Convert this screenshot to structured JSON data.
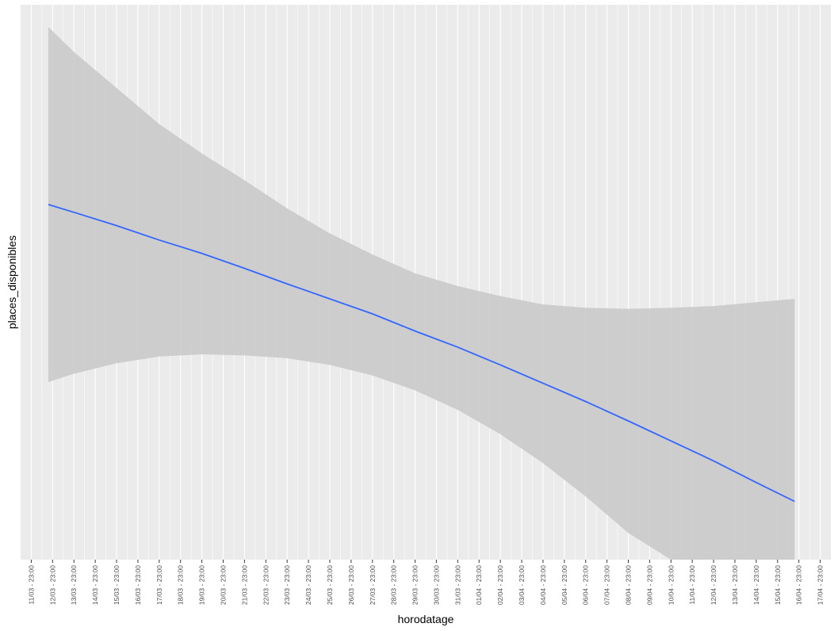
{
  "colors": {
    "panel_background": "#ebebeb",
    "grid_line": "#ffffff",
    "ribbon_fill": "#c8c8c8",
    "line_color": "#3366ff",
    "tick_color": "#333333"
  },
  "chart_data": {
    "type": "line",
    "title": "",
    "xlabel": "horodatage",
    "ylabel": "places_disponibles",
    "grid": true,
    "y_tick_labels_shown": false,
    "x_tick_labels": [
      "11/03 - 23:00",
      "12/03 - 23:00",
      "13/03 - 23:00",
      "14/03 - 23:00",
      "15/03 - 23:00",
      "16/03 - 23:00",
      "17/03 - 23:00",
      "18/03 - 23:00",
      "19/03 - 23:00",
      "20/03 - 23:00",
      "21/03 - 23:00",
      "22/03 - 23:00",
      "23/03 - 23:00",
      "24/03 - 23:00",
      "25/03 - 23:00",
      "26/03 - 23:00",
      "27/03 - 23:00",
      "28/03 - 23:00",
      "29/03 - 23:00",
      "30/03 - 23:00",
      "31/03 - 23:00",
      "01/04 - 23:00",
      "02/04 - 23:00",
      "03/04 - 23:00",
      "04/04 - 23:00",
      "05/04 - 23:00",
      "06/04 - 23:00",
      "07/04 - 23:00",
      "08/04 - 23:00",
      "09/04 - 23:00",
      "10/04 - 23:00",
      "11/04 - 23:00",
      "12/04 - 23:00",
      "13/04 - 23:00",
      "14/04 - 23:00",
      "15/04 - 23:00",
      "16/04 - 23:00",
      "17/04 - 23:00"
    ],
    "xlim_ticks": [
      0,
      37
    ],
    "ylim": [
      0,
      100
    ],
    "series": [
      {
        "x": [
          0.8,
          2,
          4,
          6,
          8,
          10,
          12,
          14,
          16,
          18,
          20,
          22,
          24,
          26,
          28,
          30,
          32,
          34,
          35.8
        ],
        "y": [
          64,
          62.6,
          60.2,
          57.6,
          55.2,
          52.5,
          49.7,
          47.0,
          44.3,
          41.2,
          38.3,
          35.1,
          31.8,
          28.5,
          25.0,
          21.4,
          17.8,
          13.9,
          10.5
        ],
        "ymin": [
          32,
          33.5,
          35.4,
          36.6,
          37.0,
          36.8,
          36.3,
          35.1,
          33.2,
          30.5,
          27.0,
          22.6,
          17.4,
          11.4,
          4.8,
          -2.3,
          -9.5,
          -17.0,
          -24.5
        ],
        "ymax": [
          96,
          91.5,
          85.0,
          78.5,
          73.2,
          68.4,
          63.3,
          58.8,
          55.0,
          51.6,
          49.3,
          47.5,
          46.0,
          45.4,
          45.2,
          45.4,
          45.7,
          46.4,
          47.0
        ]
      }
    ]
  }
}
